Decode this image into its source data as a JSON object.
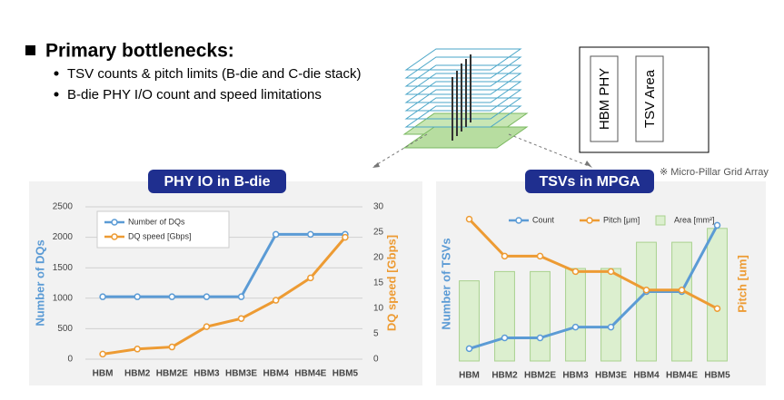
{
  "slide": {
    "title": "Primary bottlenecks:",
    "bullets": [
      "TSV counts & pitch limits (B-die and C-die stack)",
      "B-die PHY I/O count and speed limitations"
    ],
    "diagram_labels": [
      "HBM PHY",
      "TSV Area"
    ],
    "note": "※ Micro-Pillar Grid Array"
  },
  "chart_data": [
    {
      "type": "line",
      "title": "PHY IO in B-die",
      "categories": [
        "HBM",
        "HBM2",
        "HBM2E",
        "HBM3",
        "HBM3E",
        "HBM4",
        "HBM4E",
        "HBM5"
      ],
      "y_label": "Number of DQs",
      "y2_label": "DQ speed [Gbps]",
      "ylim": [
        0,
        2500
      ],
      "yticks": [
        0,
        500,
        1000,
        1500,
        2000,
        2500
      ],
      "y2lim": [
        0,
        30
      ],
      "y2ticks": [
        0,
        5,
        10,
        15,
        20,
        25,
        30
      ],
      "grid": true,
      "series": [
        {
          "name": "Number of DQs",
          "color": "#5b9bd5",
          "kind": "line",
          "values": [
            1024,
            1024,
            1024,
            1024,
            1024,
            2048,
            2048,
            2048
          ]
        },
        {
          "name": "DQ speed [Gbps]",
          "color": "#ed9b33",
          "kind": "line",
          "axis": "y2",
          "values": [
            1,
            2,
            2.4,
            6.4,
            8,
            11.6,
            16,
            24
          ]
        }
      ]
    },
    {
      "type": "combo",
      "title": "TSVs in MPGA",
      "categories": [
        "HBM",
        "HBM2",
        "HBM2E",
        "HBM3",
        "HBM3E",
        "HBM4",
        "HBM4E",
        "HBM5"
      ],
      "y_label": "Number of TSVs",
      "y2_label": "Pitch [um]",
      "ylim": [
        0,
        100
      ],
      "y2lim": [
        0,
        100
      ],
      "grid": false,
      "series": [
        {
          "name": "Count",
          "color": "#5b9bd5",
          "kind": "line",
          "values": [
            8,
            15,
            15,
            22,
            22,
            45,
            45,
            88
          ]
        },
        {
          "name": "Pitch [μm]",
          "color": "#ed9b33",
          "kind": "line",
          "axis": "y2",
          "values": [
            92,
            68,
            68,
            58,
            58,
            46,
            46,
            34
          ]
        },
        {
          "name": "Area [mm²]",
          "color": "#a9d18e",
          "kind": "bar",
          "values": [
            52,
            58,
            58,
            60,
            60,
            77,
            77,
            86
          ]
        }
      ]
    }
  ]
}
